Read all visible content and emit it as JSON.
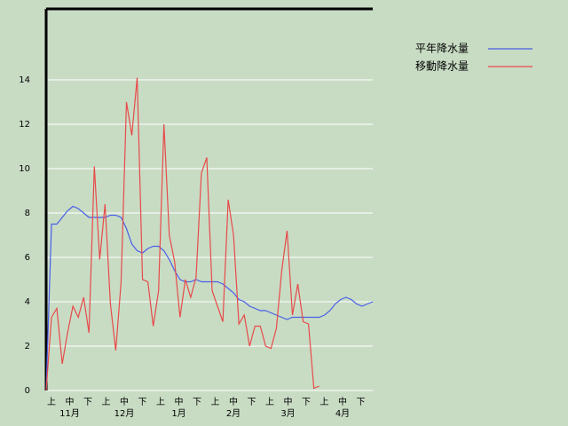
{
  "chart_data": {
    "type": "line",
    "xticks": [
      "上",
      "中",
      "下",
      "上",
      "中",
      "下",
      "上",
      "中",
      "下",
      "上",
      "中",
      "下",
      "上",
      "中",
      "下",
      "上",
      "中",
      "下"
    ],
    "month_labels": [
      "11月",
      "12月",
      "1月",
      "2月",
      "3月",
      "4月"
    ],
    "series": [
      {
        "name": "平年降水量",
        "color": "#4a5ee8",
        "values": [
          0,
          7.5,
          7.5,
          7.8,
          8.1,
          8.3,
          8.2,
          8.0,
          7.8,
          7.8,
          7.8,
          7.8,
          7.9,
          7.9,
          7.8,
          7.3,
          6.6,
          6.3,
          6.2,
          6.4,
          6.5,
          6.5,
          6.3,
          5.9,
          5.4,
          5.0,
          4.9,
          4.9,
          5.0,
          4.9,
          4.9,
          4.9,
          4.9,
          4.8,
          4.6,
          4.4,
          4.1,
          4.0,
          3.8,
          3.7,
          3.6,
          3.6,
          3.5,
          3.4,
          3.3,
          3.2,
          3.3,
          3.3,
          3.3,
          3.3,
          3.3,
          3.3,
          3.4,
          3.6,
          3.9,
          4.1,
          4.2,
          4.1,
          3.9,
          3.8,
          3.9,
          4.0
        ]
      },
      {
        "name": "移動降水量",
        "color": "#e84a4a",
        "values": [
          0,
          3.3,
          3.7,
          1.2,
          2.6,
          3.8,
          3.3,
          4.2,
          2.6,
          10.1,
          5.9,
          8.4,
          3.9,
          1.8,
          4.9,
          13,
          11.5,
          14.1,
          5.0,
          4.9,
          2.9,
          4.5,
          12.0,
          7.0,
          5.8,
          3.3,
          5.0,
          4.2,
          5.1,
          9.8,
          10.5,
          4.5,
          3.8,
          3.1,
          8.6,
          7.0,
          3.0,
          3.4,
          2.0,
          2.9,
          2.9,
          2.0,
          1.9,
          2.8,
          5.4,
          7.2,
          3.4,
          4.8,
          3.1,
          3.0,
          0.1,
          0.2,
          null,
          null,
          null,
          null,
          null,
          null,
          null,
          null,
          null,
          null
        ]
      }
    ],
    "ylim": [
      0,
      17.2
    ],
    "yticks": [
      0,
      2,
      4,
      6,
      8,
      10,
      12,
      14
    ],
    "grid": true
  }
}
